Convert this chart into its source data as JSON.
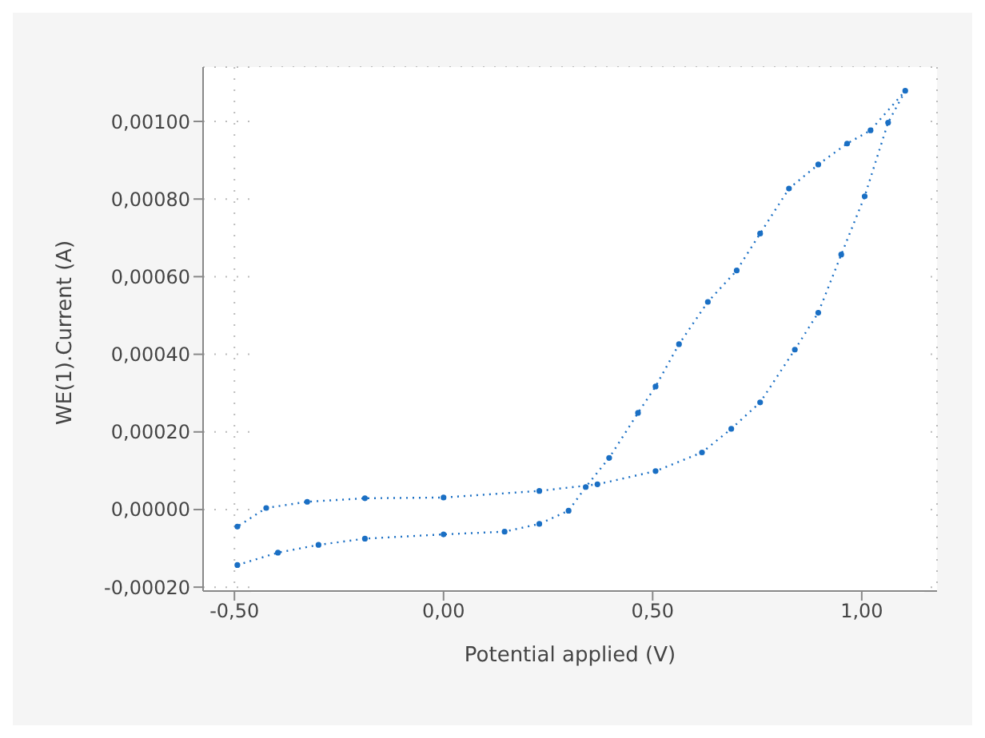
{
  "chart_data": {
    "type": "line",
    "xlabel": "Potential applied (V)",
    "ylabel": "WE(1).Current (A)",
    "xlim": [
      -0.575,
      1.18
    ],
    "ylim": [
      -0.00021,
      0.00114
    ],
    "xticks": [
      {
        "value": -0.5,
        "label": "-0,50"
      },
      {
        "value": 0,
        "label": "0,00"
      },
      {
        "value": 0.5,
        "label": "0,50"
      },
      {
        "value": 1,
        "label": "1,00"
      }
    ],
    "yticks": [
      {
        "value": -0.0002,
        "label": "-0,00020"
      },
      {
        "value": 0,
        "label": "0,00000"
      },
      {
        "value": 0.0002,
        "label": "0,00020"
      },
      {
        "value": 0.0004,
        "label": "0,00040"
      },
      {
        "value": 0.0006,
        "label": "0,00060"
      },
      {
        "value": 0.0008,
        "label": "0,00080"
      },
      {
        "value": 0.001,
        "label": "0,00100"
      }
    ],
    "grid": true,
    "marker": "circle",
    "line_style": "dotted",
    "series": [
      {
        "color": "#1a6fc4",
        "x": [
          -0.493,
          -0.396,
          -0.299,
          -0.188,
          0,
          0.146,
          0.229,
          0.299,
          0.34,
          0.396,
          0.465,
          0.507,
          0.563,
          0.632,
          0.701,
          0.757,
          0.826,
          0.896,
          0.965,
          1.021,
          1.104,
          1.063,
          1.007,
          0.951,
          0.896,
          0.84,
          0.757,
          0.688,
          0.618,
          0.507,
          0.368,
          0.229,
          0,
          -0.188,
          -0.326,
          -0.424,
          -0.493
        ],
        "values": [
          -0.000143,
          -0.000111,
          -9.1e-05,
          -7.5e-05,
          -6.4e-05,
          -5.7e-05,
          -3.7e-05,
          -3e-06,
          5.8e-05,
          0.000133,
          0.000249,
          0.000317,
          0.000426,
          0.000535,
          0.000616,
          0.000711,
          0.000827,
          0.000889,
          0.000943,
          0.000977,
          0.001079,
          0.000997,
          0.000807,
          0.000657,
          0.000507,
          0.000412,
          0.000276,
          0.000208,
          0.000147,
          9.9e-05,
          6.5e-05,
          4.8e-05,
          3.1e-05,
          2.9e-05,
          2e-05,
          4e-06,
          -4.4e-05
        ]
      }
    ]
  }
}
